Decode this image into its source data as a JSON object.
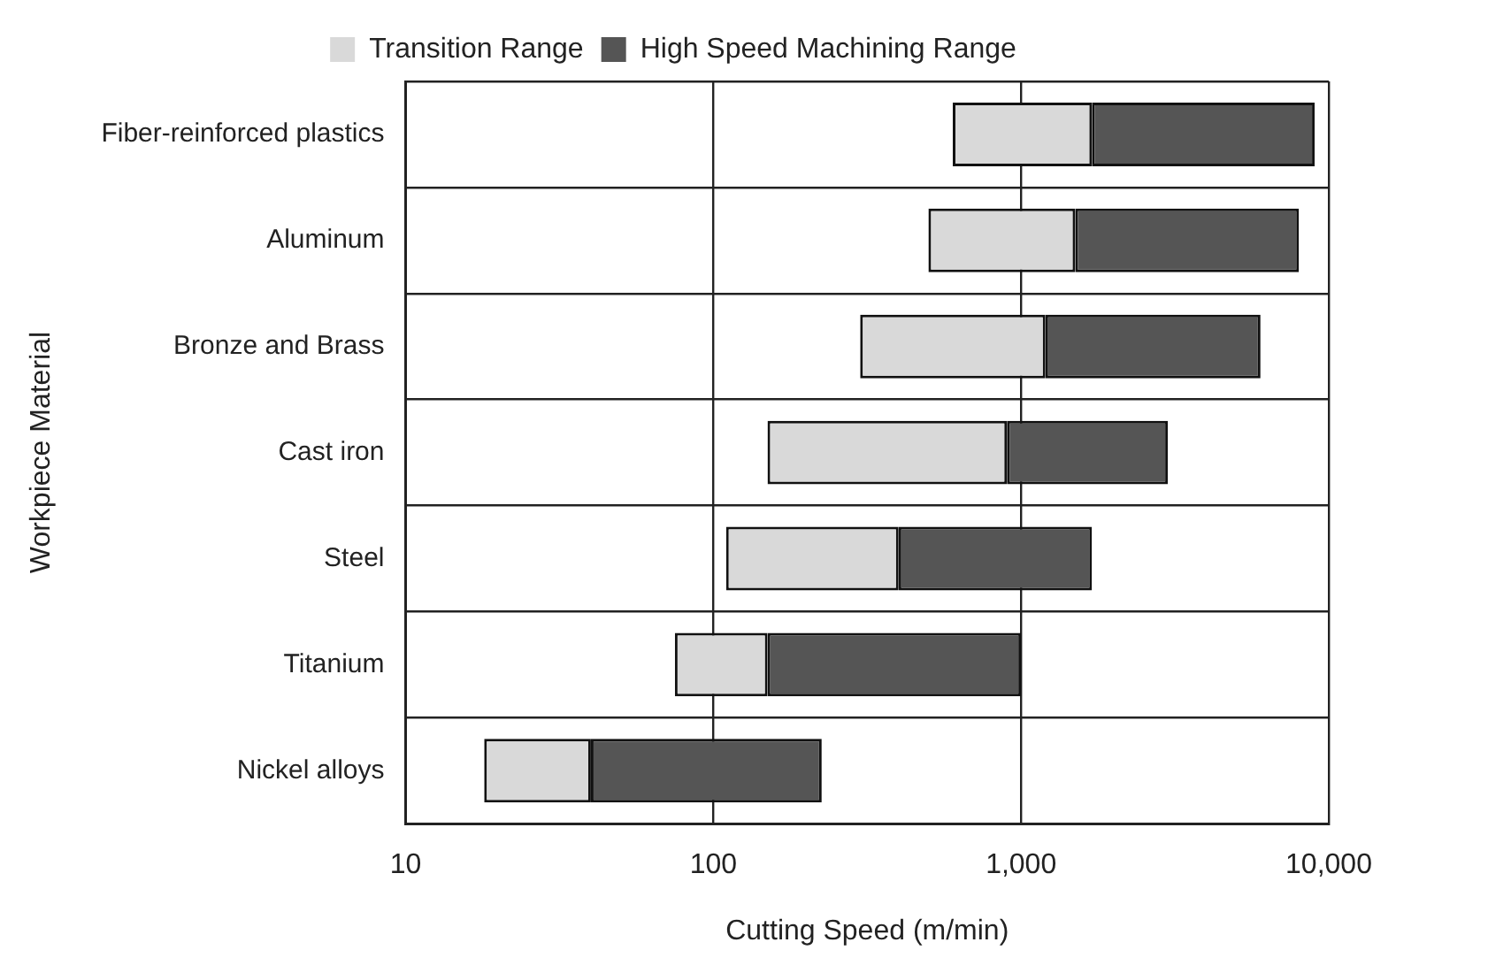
{
  "chart_data": {
    "type": "bar",
    "orientation": "horizontal",
    "log": "x",
    "xlabel": "Cutting Speed (m/min)",
    "ylabel": "Workpiece Material",
    "categories": [
      "Fiber-reinforced plastics",
      "Aluminum",
      "Bronze and Brass",
      "Cast iron",
      "Steel",
      "Titanium",
      "Nickel alloys"
    ],
    "series": [
      {
        "name": "Transition Range",
        "color": "#d9d9d9",
        "base": [
          600,
          500,
          300,
          150,
          110,
          75,
          18
        ],
        "values": [
          1100,
          1000,
          900,
          750,
          290,
          75,
          22
        ]
      },
      {
        "name": "High Speed Machining Range",
        "color": "#555555",
        "base": [
          1700,
          1500,
          1200,
          900,
          400,
          150,
          40
        ],
        "values": [
          7300,
          6500,
          4800,
          2100,
          1300,
          850,
          185
        ]
      }
    ],
    "xlim": [
      10,
      10000
    ],
    "xticks": [
      10,
      100,
      {
        "value": 1000,
        "label": "1,000"
      },
      {
        "value": 10000,
        "label": "10,000"
      }
    ],
    "grid": true,
    "legend": "top"
  }
}
